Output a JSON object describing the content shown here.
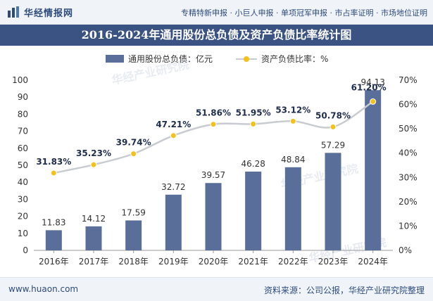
{
  "header": {
    "brand": "华经情报网",
    "services": "专精特新申报 · 小巨人申报 · 单项冠军申报 · 市占率证明 · 市场地位证明"
  },
  "title": "2016-2024年通用股份总负债及资产负债比率统计图",
  "footer": {
    "website": "www.huaon.com",
    "source": "资料来源：公司公报，华经产业研究院整理"
  },
  "watermark": "华经产业研究院",
  "colors": {
    "bar": "#5a6e9a",
    "line": "#c8cbd0",
    "marker": "#f2c21b",
    "title_bg": "#3b5383"
  },
  "chart_data": {
    "type": "bar",
    "categories": [
      "2016年",
      "2017年",
      "2018年",
      "2019年",
      "2020年",
      "2021年",
      "2022年",
      "2023年",
      "2024年"
    ],
    "series": [
      {
        "name": "通用股份总负债：亿元",
        "type": "bar",
        "axis": "left",
        "values": [
          11.83,
          14.12,
          17.59,
          32.72,
          39.57,
          46.28,
          48.84,
          57.29,
          94.13
        ],
        "labels": [
          "11.83",
          "14.12",
          "17.59",
          "32.72",
          "39.57",
          "46.28",
          "48.84",
          "57.29",
          "94.13"
        ]
      },
      {
        "name": "资产负债比率：%",
        "type": "line",
        "axis": "right",
        "values": [
          31.83,
          35.23,
          39.74,
          47.21,
          51.86,
          51.95,
          53.12,
          50.78,
          61.2
        ],
        "labels": [
          "31.83%",
          "35.23%",
          "39.74%",
          "47.21%",
          "51.86%",
          "51.95%",
          "53.12%",
          "50.78%",
          "61.20%"
        ]
      }
    ],
    "y_left": {
      "min": 0,
      "max": 100,
      "ticks": [
        "0",
        "10",
        "20",
        "30",
        "40",
        "50",
        "60",
        "70",
        "80",
        "90",
        "100"
      ]
    },
    "y_right": {
      "min": 0,
      "max": 70,
      "ticks": [
        "0%",
        "10%",
        "20%",
        "30%",
        "40%",
        "50%",
        "60%",
        "70%"
      ]
    },
    "legend_position": "top-center",
    "grid": false
  }
}
